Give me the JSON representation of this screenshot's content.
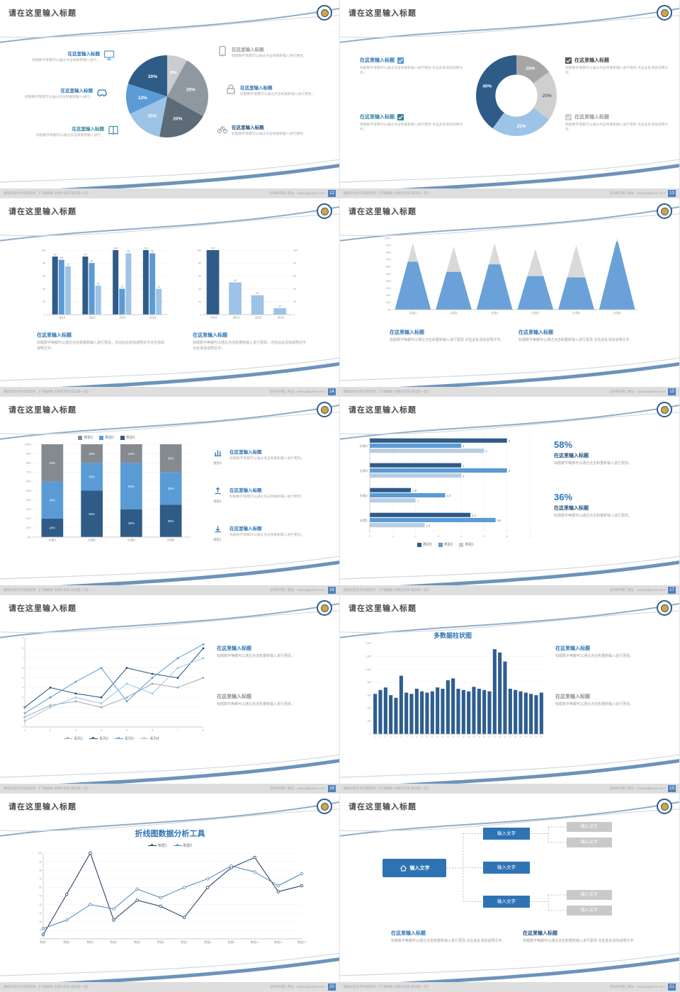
{
  "common": {
    "slide_title": "请在这里输入标题",
    "block_title": "在这里输入标题",
    "desc_short": "标题数字等都可以通过点击和重新输入进行更改。",
    "desc_mid": "标题数字等都可以通过点击和重新输入进行。",
    "desc_long": "标题数字等都可以通过点击和重新输入进行更改 点击此处添加说明文字。",
    "desc_3l": "标题数字等都可以通过点击和重新输入进行更改，点击此处添加说明文字点击添加说明文字。",
    "footer_left": "模板欣赏文字说明适用：【下载模板-文稿片欣赏-就读第一页】",
    "footer_right": "【四季开网】网址：www.pptjpmius.com"
  },
  "slides": [
    {
      "page": "12",
      "chart": {
        "type": "pie",
        "slices": [
          {
            "v": 8,
            "c": "#c9ccd0",
            "l": "8%"
          },
          {
            "v": 25,
            "c": "#8f98a1",
            "l": "25%"
          },
          {
            "v": 20,
            "c": "#5d6a77",
            "l": "20%"
          },
          {
            "v": 15,
            "c": "#9dc3e6",
            "l": "15%"
          },
          {
            "v": 12,
            "c": "#5b9bd5",
            "l": "12%"
          },
          {
            "v": 20,
            "c": "#2f5b87",
            "l": "20%"
          }
        ]
      }
    },
    {
      "page": "13",
      "chart": {
        "type": "donut",
        "inner": 0.52,
        "slices": [
          {
            "v": 15,
            "c": "#a6a6a6",
            "l": "15%"
          },
          {
            "v": 20,
            "c": "#cfcfcf",
            "l": "20%",
            "lc": "#6b6b6b"
          },
          {
            "v": 25,
            "c": "#9dc3e6",
            "l": "25%"
          },
          {
            "v": 40,
            "c": "#2f5b87",
            "l": "40%"
          }
        ]
      }
    },
    {
      "page": "14",
      "chart_left": {
        "type": "bars",
        "cats": [
          "2010",
          "2012",
          "2014",
          "2016"
        ],
        "ymax": 100,
        "yticks": [
          0,
          20,
          40,
          60,
          80,
          100
        ],
        "vlabels": true,
        "series": [
          {
            "c": "#2f5b87",
            "values": [
              90,
              90,
              100,
              100
            ]
          },
          {
            "c": "#5b9bd5",
            "values": [
              85,
              80,
              40,
              95
            ]
          },
          {
            "c": "#9dc3e6",
            "values": [
              75,
              45,
              95,
              40
            ]
          }
        ]
      },
      "chart_right": {
        "type": "bars",
        "cats": [
          "2016",
          "2014",
          "2012",
          "2010"
        ],
        "ymax": 100,
        "yticks": [
          0,
          20,
          40,
          60,
          80,
          100
        ],
        "vlabels": true,
        "rticks": true,
        "series": [
          {
            "colors": [
              "#2f5b87",
              "#9dc3e6",
              "#9dc3e6",
              "#9dc3e6"
            ],
            "values": [
              100,
              50,
              30,
              10
            ]
          }
        ]
      }
    },
    {
      "page": "15",
      "chart": {
        "type": "pyramid",
        "ypct": true,
        "yticks": [
          0,
          10,
          20,
          30,
          40,
          50,
          60,
          70,
          80,
          90,
          100
        ],
        "items": [
          {
            "label": "分类1",
            "total": 0.93,
            "fill": 0.72
          },
          {
            "label": "分类2",
            "total": 0.88,
            "fill": 0.6
          },
          {
            "label": "分类3",
            "total": 0.93,
            "fill": 0.68
          },
          {
            "label": "分类4",
            "total": 0.85,
            "fill": 0.55
          },
          {
            "label": "分类5",
            "total": 0.9,
            "fill": 0.5
          },
          {
            "label": "分类6",
            "total": 1.0,
            "fill": 0.95
          }
        ]
      }
    },
    {
      "page": "16",
      "rows": [
        {
          "tag": "类别3"
        },
        {
          "tag": "类别2"
        },
        {
          "tag": "类别1"
        }
      ],
      "chart": {
        "type": "stack",
        "ypct": true,
        "cats": [
          "分类1",
          "分类2",
          "分类3",
          "分类4"
        ],
        "yticks": [
          0,
          10,
          20,
          30,
          40,
          50,
          60,
          70,
          80,
          90,
          100
        ],
        "series": [
          {
            "name": "类别1",
            "c": "#2f5b87",
            "values": [
              20,
              50,
              30,
              35
            ]
          },
          {
            "name": "类别2",
            "c": "#5b9bd5",
            "values": [
              40,
              30,
              50,
              35
            ]
          },
          {
            "name": "类别3",
            "c": "#848a90",
            "values": [
              40,
              20,
              20,
              30
            ]
          }
        ],
        "legend": {
          "pos": "top",
          "items": [
            {
              "label": "类别3",
              "c": "#848a90"
            },
            {
              "label": "类别2",
              "c": "#5b9bd5"
            },
            {
              "label": "类别1",
              "c": "#2f5b87"
            }
          ]
        }
      }
    },
    {
      "page": "17",
      "stats": [
        {
          "pct": "58%"
        },
        {
          "pct": "36%"
        }
      ],
      "chart": {
        "type": "hbars",
        "xmax": 7,
        "xticks": [
          0,
          1,
          2,
          3,
          4,
          5,
          6,
          7
        ],
        "groups": [
          {
            "cat": "分类4",
            "bars": [
              {
                "v": 6,
                "c": "#2f5b87"
              },
              {
                "v": 4,
                "c": "#5b9bd5"
              },
              {
                "v": 5,
                "c": "#b9cde1"
              }
            ]
          },
          {
            "cat": "分类3",
            "bars": [
              {
                "v": 4,
                "c": "#2f5b87"
              },
              {
                "v": 6,
                "c": "#5b9bd5"
              },
              {
                "v": 4,
                "c": "#b9cde1"
              }
            ]
          },
          {
            "cat": "分类2",
            "bars": [
              {
                "v": 1.8,
                "c": "#2f5b87"
              },
              {
                "v": 3.3,
                "c": "#5b9bd5"
              },
              {
                "v": 2,
                "c": "#b9cde1"
              }
            ]
          },
          {
            "cat": "分类1",
            "bars": [
              {
                "v": 4.4,
                "c": "#2f5b87"
              },
              {
                "v": 5.5,
                "c": "#5b9bd5"
              },
              {
                "v": 2.4,
                "c": "#b9cde1"
              }
            ]
          }
        ],
        "legend": {
          "pos": "bottom",
          "items": [
            {
              "label": "类别3",
              "c": "#2f5b87"
            },
            {
              "label": "类别2",
              "c": "#5b9bd5"
            },
            {
              "label": "类别1",
              "c": "#b9cde1"
            }
          ]
        }
      }
    },
    {
      "page": "18",
      "chart": {
        "type": "lines",
        "ymax": 9,
        "yticks": [
          0,
          1,
          2,
          3,
          4,
          5,
          6,
          7,
          8,
          9
        ],
        "xlabels": [
          "1",
          "2",
          "3",
          "4",
          "5",
          "6",
          "7",
          "8"
        ],
        "series": [
          {
            "name": "系列1",
            "c": "#a6a6a6",
            "values": [
              1,
              2.2,
              2.6,
              2,
              3,
              4.4,
              4,
              5
            ]
          },
          {
            "name": "系列2",
            "c": "#1f4e79",
            "values": [
              2,
              4,
              3.4,
              3,
              6,
              5.4,
              5,
              8
            ]
          },
          {
            "name": "系列3",
            "c": "#5b9bd5",
            "values": [
              1.4,
              3,
              4.6,
              6,
              2.6,
              5,
              7,
              8.4
            ]
          },
          {
            "name": "系列4",
            "c": "#9dc3e6",
            "values": [
              0.6,
              2,
              3,
              2.4,
              4.4,
              3.4,
              6,
              7
            ]
          }
        ],
        "legend": {
          "pos": "bottom",
          "marker": "line",
          "items": [
            {
              "label": "系列1",
              "c": "#a6a6a6"
            },
            {
              "label": "系列2",
              "c": "#1f4e79"
            },
            {
              "label": "系列3",
              "c": "#5b9bd5"
            },
            {
              "label": "系列4",
              "c": "#9dc3e6"
            }
          ]
        }
      }
    },
    {
      "page": "19",
      "chart_title": "多数据柱状图",
      "chart": {
        "type": "cols",
        "ymax": 1400,
        "yticks": [
          0,
          200,
          400,
          600,
          800,
          1000,
          1200,
          1400
        ],
        "ylabels": [
          "0",
          "200",
          "400",
          "600",
          "800",
          "1,000",
          "1,200",
          "1,400"
        ],
        "xlabels": [
          "1",
          "2",
          "3",
          "4",
          "5",
          "6",
          "7",
          "8",
          "9",
          "10",
          "11",
          "12",
          "13",
          "14",
          "15",
          "16",
          "17",
          "18",
          "19",
          "20",
          "21",
          "22",
          "23",
          "24",
          "25",
          "26",
          "27",
          "28",
          "29",
          "30",
          "31",
          "32",
          "33"
        ],
        "values": [
          620,
          680,
          720,
          600,
          560,
          900,
          640,
          620,
          700,
          660,
          640,
          660,
          720,
          700,
          830,
          860,
          700,
          680,
          660,
          730,
          700,
          680,
          660,
          1310,
          1260,
          1120,
          700,
          680,
          660,
          640,
          620,
          600,
          640
        ]
      }
    },
    {
      "page": "20",
      "chart_title": "折线图数据分析工具",
      "chart": {
        "type": "lines",
        "hollow": true,
        "ymax": 100,
        "yticks": [
          0,
          10,
          20,
          30,
          40,
          50,
          60,
          70,
          80,
          90,
          100
        ],
        "xlabels": [
          "数据1",
          "数据2",
          "数据3",
          "数据4",
          "数据5",
          "数据6",
          "数据7",
          "数据8",
          "数据9",
          "数据10",
          "数据11",
          "数据12"
        ],
        "series": [
          {
            "name": "数据1",
            "c": "#17375e",
            "values": [
              5,
              52,
              100,
              22,
              45,
              38,
              25,
              60,
              83,
              95,
              55,
              62
            ]
          },
          {
            "name": "数据2",
            "c": "#4f81bd",
            "values": [
              12,
              22,
              40,
              35,
              58,
              48,
              60,
              70,
              85,
              78,
              62,
              76
            ]
          }
        ],
        "legend": {
          "pos": "top",
          "marker": "line",
          "items": [
            {
              "label": "数据1",
              "c": "#17375e"
            },
            {
              "label": "数据2",
              "c": "#4f81bd"
            }
          ]
        }
      }
    },
    {
      "page": "21",
      "diagram": {
        "home": "输入文字",
        "blue": [
          "输入文字",
          "输入文字",
          "输入文字"
        ],
        "gray": [
          "输入文字",
          "输入文字",
          "输入文字",
          "输入文字"
        ]
      }
    }
  ]
}
